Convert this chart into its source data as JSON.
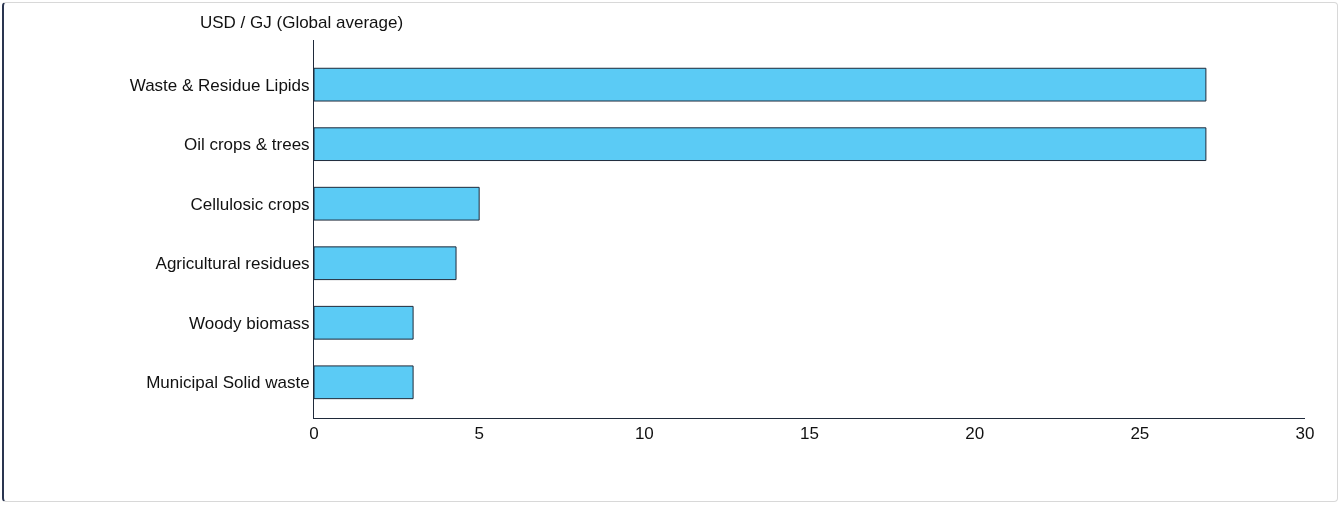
{
  "chart_data": {
    "type": "bar",
    "orientation": "horizontal",
    "title": "USD / GJ (Global average)",
    "categories": [
      "Waste & Residue Lipids",
      "Oil crops & trees",
      "Cellulosic crops",
      "Agricultural residues",
      "Woody biomass",
      "Municipal Solid waste"
    ],
    "values": [
      27,
      27,
      5,
      4.3,
      3,
      3
    ],
    "color": "#5bcbf5",
    "xlim": [
      0,
      30
    ],
    "xticks": [
      0,
      5,
      10,
      15,
      20,
      25,
      30
    ]
  }
}
